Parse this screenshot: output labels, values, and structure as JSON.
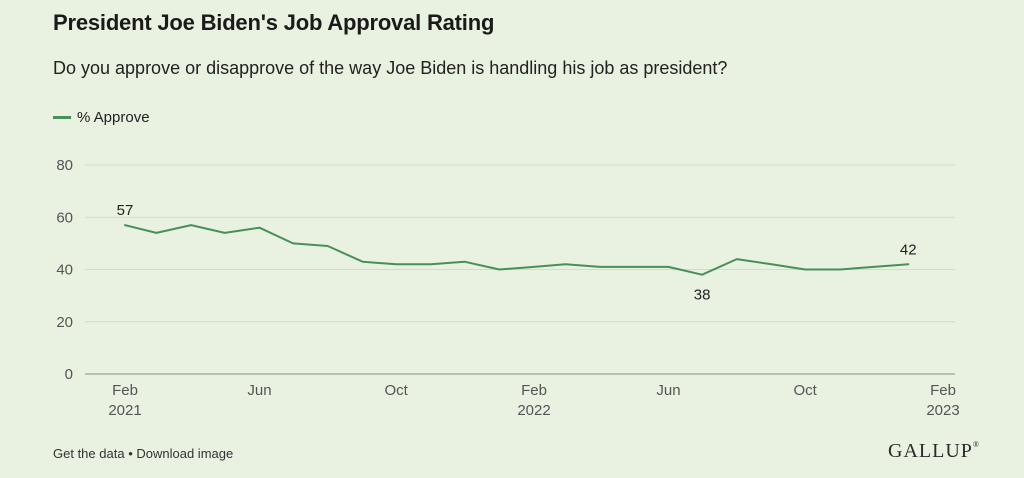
{
  "header": {
    "title": "President Joe Biden's Job Approval Rating",
    "subtitle": "Do you approve or disapprove of the way Joe Biden is handling his job as president?"
  },
  "footer": {
    "get_data": "Get the data",
    "separator": "•",
    "download": "Download image",
    "logo": "GALLUP",
    "logo_mark": "®"
  },
  "colors": {
    "line": "#4a8f5a",
    "grid": "#d3dccb",
    "axis": "#555555",
    "background": "#e9f1e1"
  },
  "chart_data": {
    "type": "line",
    "title": "President Joe Biden's Job Approval Rating",
    "subtitle": "Do you approve or disapprove of the way Joe Biden is handling his job as president?",
    "xlabel": "",
    "ylabel": "",
    "ylim": [
      0,
      80
    ],
    "yticks": [
      0,
      20,
      40,
      60,
      80
    ],
    "xlim": [
      "2021-02-01",
      "2023-02-01"
    ],
    "xticks": [
      {
        "date": "2021-02-01",
        "label": "Feb",
        "year": "2021"
      },
      {
        "date": "2021-06-01",
        "label": "Jun",
        "year": ""
      },
      {
        "date": "2021-10-01",
        "label": "Oct",
        "year": ""
      },
      {
        "date": "2022-02-01",
        "label": "Feb",
        "year": "2022"
      },
      {
        "date": "2022-06-01",
        "label": "Jun",
        "year": ""
      },
      {
        "date": "2022-10-01",
        "label": "Oct",
        "year": ""
      },
      {
        "date": "2023-02-01",
        "label": "Feb",
        "year": "2023"
      }
    ],
    "grid": true,
    "legend": "top-left",
    "series": [
      {
        "name": "% Approve",
        "points": [
          {
            "x": "2021-02-01",
            "y": 57
          },
          {
            "x": "2021-03-01",
            "y": 54
          },
          {
            "x": "2021-04-01",
            "y": 57
          },
          {
            "x": "2021-05-01",
            "y": 54
          },
          {
            "x": "2021-06-01",
            "y": 56
          },
          {
            "x": "2021-07-01",
            "y": 50
          },
          {
            "x": "2021-08-01",
            "y": 49
          },
          {
            "x": "2021-09-01",
            "y": 43
          },
          {
            "x": "2021-10-01",
            "y": 42
          },
          {
            "x": "2021-11-01",
            "y": 42
          },
          {
            "x": "2021-12-01",
            "y": 43
          },
          {
            "x": "2022-01-01",
            "y": 40
          },
          {
            "x": "2022-02-01",
            "y": 41
          },
          {
            "x": "2022-03-01",
            "y": 42
          },
          {
            "x": "2022-04-01",
            "y": 41
          },
          {
            "x": "2022-05-01",
            "y": 41
          },
          {
            "x": "2022-06-01",
            "y": 41
          },
          {
            "x": "2022-07-01",
            "y": 38
          },
          {
            "x": "2022-08-01",
            "y": 44
          },
          {
            "x": "2022-09-01",
            "y": 42
          },
          {
            "x": "2022-10-01",
            "y": 40
          },
          {
            "x": "2022-11-01",
            "y": 40
          },
          {
            "x": "2022-12-01",
            "y": 41
          },
          {
            "x": "2023-01-01",
            "y": 42
          }
        ]
      }
    ],
    "annotations": [
      {
        "x": "2021-02-01",
        "y": 57,
        "text": "57",
        "position": "above"
      },
      {
        "x": "2022-07-01",
        "y": 38,
        "text": "38",
        "position": "below"
      },
      {
        "x": "2023-01-01",
        "y": 42,
        "text": "42",
        "position": "above"
      }
    ]
  }
}
